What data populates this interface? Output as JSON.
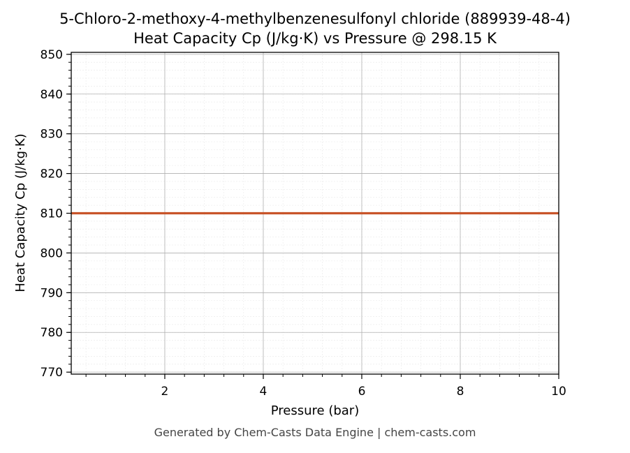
{
  "chart_data": {
    "type": "line",
    "title_lines": [
      "5-Chloro-2-methoxy-4-methylbenzenesulfonyl chloride (889939-48-4)",
      "Heat Capacity Cp (J/kg·K) vs Pressure @ 298.15 K"
    ],
    "xlabel": "Pressure (bar)",
    "ylabel": "Heat Capacity Cp (J/kg·K)",
    "xlim": [
      0.1,
      10
    ],
    "ylim": [
      769.5,
      850.5
    ],
    "x_ticks": [
      2,
      4,
      6,
      8,
      10
    ],
    "y_ticks": [
      770,
      780,
      790,
      800,
      810,
      820,
      830,
      840,
      850
    ],
    "grid": true,
    "series": [
      {
        "color": "#c8552a",
        "x": [
          0.1,
          10
        ],
        "y": [
          810,
          810
        ]
      }
    ]
  },
  "footer": "Generated by Chem-Casts Data Engine | chem-casts.com"
}
